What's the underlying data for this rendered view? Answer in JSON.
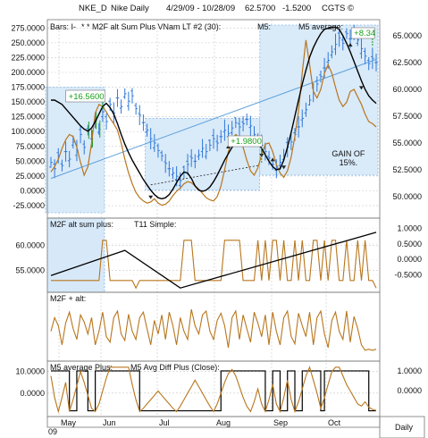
{
  "header": {
    "symbol": "NKE_D",
    "title": "Nike Daily",
    "date_range": "4/29/09 - 10/28/09",
    "last_price": "62.5700",
    "change": "-1.5200",
    "copyright": "CGTS ©"
  },
  "chart_data": [
    {
      "type": "line",
      "panel": "price",
      "legend": [
        "Bars: I-",
        "* * M2F alt Sum Plus VNam LT #2 (30):",
        "M5:",
        "M5 average:"
      ],
      "left_axis_ticks": [
        "275.0000",
        "250.0000",
        "225.0000",
        "200.0000",
        "175.0000",
        "150.0000",
        "125.0000",
        "100.0000",
        "75.0000",
        "50.0000",
        "25.0000",
        "0.0000",
        "-25.0000"
      ],
      "right_axis_ticks": [
        "65.0000",
        "62.5000",
        "60.0000",
        "57.5000",
        "55.0000",
        "52.5000",
        "50.0000"
      ],
      "right_ylim": [
        48.5,
        66.0
      ],
      "left_ylim": [
        -37,
        280
      ],
      "x_labels": [
        "May",
        "Jun",
        "Jul",
        "Aug",
        "Sep",
        "Oct"
      ],
      "year_label": "09",
      "corner_label": "Daily",
      "annotations": [
        "+16.5600",
        "+1.9800",
        "+8.34",
        "GAIN OF",
        "15%."
      ],
      "price_close": [
        53.2,
        52.6,
        53.8,
        52.9,
        54.2,
        53.5,
        55.1,
        54.3,
        55.8,
        54.6,
        56.2,
        55.4,
        57.1,
        56.3,
        57.9,
        57.0,
        58.6,
        57.8,
        59.2,
        58.4,
        59.6,
        58.9,
        59.4,
        58.2,
        57.6,
        56.9,
        56.2,
        55.4,
        55.0,
        54.3,
        53.8,
        53.1,
        52.6,
        52.2,
        51.9,
        51.5,
        52.3,
        53.0,
        53.6,
        53.3,
        53.9,
        54.5,
        54.2,
        54.8,
        55.4,
        55.0,
        55.6,
        56.2,
        55.9,
        56.4,
        56.9,
        56.5,
        56.8,
        57.2,
        56.6,
        55.8,
        55.3,
        54.8,
        54.2,
        53.6,
        53.0,
        52.6,
        53.2,
        53.9,
        54.6,
        55.1,
        55.8,
        56.5,
        57.3,
        58.1,
        59.0,
        59.7,
        60.5,
        61.2,
        62.0,
        62.7,
        63.5,
        64.2,
        64.8,
        64.3,
        65.2,
        64.7,
        65.3,
        64.6,
        63.8,
        63.1,
        62.4,
        62.9,
        62.5
      ],
      "black_line_right": [
        59.0,
        59.0,
        58.8,
        58.6,
        58.2,
        57.8,
        57.4,
        57.0,
        56.6,
        56.3,
        56.1,
        56.4,
        57.0,
        57.7,
        58.4,
        58.7,
        58.3,
        57.7,
        56.8,
        55.8,
        54.9,
        54.1,
        53.4,
        52.8,
        52.2,
        51.6,
        51.1,
        50.6,
        50.2,
        49.9,
        49.8,
        49.9,
        50.2,
        50.7,
        51.3,
        51.9,
        52.3,
        52.2,
        51.7,
        51.0,
        50.6,
        50.5,
        50.6,
        50.9,
        51.4,
        52.0,
        52.7,
        53.4,
        54.0,
        54.6,
        55.0,
        55.3,
        55.4,
        55.5,
        55.6,
        55.4,
        55.0,
        54.5,
        53.9,
        53.3,
        52.8,
        52.5,
        52.6,
        53.4,
        54.6,
        56.0,
        57.5,
        59.0,
        60.5,
        61.8,
        63.0,
        63.9,
        64.6,
        65.2,
        65.6,
        65.7,
        65.8,
        65.8,
        65.6,
        65.0,
        64.3,
        63.5,
        62.6,
        61.7,
        60.8,
        60.0,
        59.4,
        59.0,
        58.7
      ],
      "orange_line_right": [
        52.3,
        52.8,
        53.5,
        54.5,
        55.3,
        55.8,
        55.6,
        54.6,
        53.2,
        52.0,
        52.8,
        55.0,
        57.8,
        58.6,
        58.4,
        57.9,
        57.3,
        56.8,
        56.2,
        55.0,
        53.5,
        52.2,
        51.2,
        50.4,
        49.9,
        49.6,
        49.4,
        49.5,
        49.8,
        49.4,
        49.2,
        49.3,
        49.6,
        50.1,
        50.5,
        50.8,
        51.2,
        51.4,
        51.3,
        51.0,
        50.7,
        50.3,
        49.9,
        49.7,
        49.6,
        50.0,
        51.0,
        52.5,
        54.2,
        55.3,
        55.8,
        55.5,
        54.6,
        53.4,
        52.4,
        52.0,
        52.7,
        53.9,
        54.9,
        55.0,
        54.2,
        53.0,
        52.2,
        51.8,
        52.4,
        53.7,
        55.6,
        58.0,
        61.6,
        64.6,
        62.3,
        59.8,
        59.2,
        60.0,
        61.5,
        62.3,
        61.5,
        60.2,
        59.0,
        58.4,
        58.8,
        59.8,
        60.0,
        59.3,
        58.6,
        57.7,
        57.0,
        56.8,
        56.5
      ],
      "regression_right": [
        [
          0,
          51.7
        ],
        [
          88,
          62.8
        ]
      ],
      "entry_markers": [
        "up",
        "down",
        "up",
        "down",
        "up",
        "down",
        "up",
        "down"
      ]
    },
    {
      "type": "line",
      "panel": "m2f_alt_sum_plus",
      "legend": [
        "M2F alt sum plus:",
        "T11 Simple:"
      ],
      "left_axis_ticks": [
        "60.0000",
        "55.0000"
      ],
      "right_axis_ticks": [
        "1.0000",
        "0.5000",
        "0.0000",
        "-0.5000"
      ],
      "left_ylim": [
        51.0,
        64.0
      ],
      "right_ylim": [
        -1.0,
        1.1
      ],
      "black_line_left": [
        [
          0,
          54.0
        ],
        [
          20,
          59.0
        ],
        [
          35,
          51.5
        ],
        [
          88,
          62.6
        ]
      ],
      "orange_line_left": [
        53,
        53,
        53,
        53,
        53,
        53,
        53,
        53,
        53,
        53,
        53,
        53,
        53,
        53,
        61,
        61,
        53,
        53,
        53,
        53,
        53,
        53,
        53,
        51.5,
        53,
        53,
        53,
        53,
        53,
        53,
        53,
        53,
        53,
        53,
        53,
        53,
        61,
        61,
        61,
        53,
        53,
        53,
        53,
        53,
        53,
        53,
        53,
        61,
        61,
        61,
        61,
        61,
        53,
        53,
        53,
        53,
        61,
        53,
        61,
        53,
        61,
        61,
        53,
        61,
        53,
        53,
        61,
        53,
        61,
        53,
        53,
        61,
        61,
        53,
        61,
        53,
        61,
        61,
        53,
        53,
        61,
        53,
        53,
        61,
        53,
        61,
        53,
        53,
        51.5
      ]
    },
    {
      "type": "line",
      "panel": "m2f_alt",
      "legend": [
        "M2F + alt:"
      ],
      "left_axis_ticks": [],
      "right_axis_ticks": [],
      "ylim": [
        0,
        1
      ],
      "orange_line": [
        0.45,
        0.7,
        0.55,
        0.2,
        0.6,
        0.8,
        0.5,
        0.3,
        0.75,
        0.62,
        0.4,
        0.7,
        0.2,
        0.45,
        0.8,
        0.35,
        0.25,
        0.7,
        0.82,
        0.4,
        0.28,
        0.76,
        0.45,
        0.3,
        0.7,
        0.8,
        0.5,
        0.2,
        0.65,
        0.4,
        0.75,
        0.3,
        0.8,
        0.55,
        0.2,
        0.7,
        0.45,
        0.3,
        0.85,
        0.55,
        0.4,
        0.75,
        0.82,
        0.45,
        0.3,
        0.65,
        0.78,
        0.55,
        0.15,
        0.7,
        0.82,
        0.3,
        0.75,
        0.5,
        0.25,
        0.8,
        0.6,
        0.35,
        0.75,
        0.2,
        0.8,
        0.45,
        0.2,
        0.7,
        0.82,
        0.35,
        0.22,
        0.78,
        0.55,
        0.35,
        0.8,
        0.2,
        0.7,
        0.82,
        0.4,
        0.15,
        0.65,
        0.8,
        0.45,
        0.3,
        0.82,
        0.25,
        0.72,
        0.5,
        0.2,
        0.1,
        0.12,
        0.1,
        0.12
      ]
    },
    {
      "type": "line",
      "panel": "m5_average_plus",
      "legend": [
        "M5 average Plus:",
        "M5 Avg Diff Plus (Close):"
      ],
      "left_axis_ticks": [
        "10.0000",
        "0.0000"
      ],
      "right_axis_ticks": [
        "1.0000",
        "0.0000"
      ],
      "left_ylim": [
        -10.0,
        14.0
      ],
      "right_ylim": [
        -1.2,
        1.4
      ],
      "black_step_right": [
        1,
        1,
        1,
        1,
        1,
        -1,
        -1,
        1,
        1,
        1,
        -1,
        -1,
        1,
        1,
        1,
        1,
        1,
        1,
        1,
        1,
        1,
        1,
        1,
        1,
        -1,
        -1,
        -1,
        -1,
        -1,
        -1,
        -1,
        -1,
        -1,
        -1,
        -1,
        -1,
        -1,
        -1,
        -1,
        -1,
        -1,
        -1,
        -1,
        -1,
        -1,
        -1,
        1,
        1,
        1,
        1,
        1,
        1,
        1,
        1,
        1,
        1,
        1,
        1,
        -1,
        -1,
        1,
        1,
        -1,
        -1,
        1,
        1,
        -1,
        -1,
        1,
        1,
        1,
        1,
        1,
        -1,
        1,
        1,
        1,
        1,
        1,
        1,
        1,
        1,
        1,
        1,
        1,
        1,
        -1,
        -1,
        -1
      ],
      "orange_line_left": [
        8.0,
        -2.0,
        -8.5,
        -2.0,
        5.0,
        -8.5,
        -3.0,
        3.5,
        10.0,
        5.0,
        -1.0,
        -7.0,
        -8.5,
        -5.0,
        1.0,
        7.0,
        12.0,
        12.0,
        12.0,
        12.0,
        12.0,
        12.0,
        4.0,
        -3.0,
        -8.5,
        -7.0,
        -5.0,
        -3.0,
        -1.0,
        1.0,
        -1.0,
        -3.0,
        -5.0,
        -7.0,
        -8.5,
        -6.0,
        -3.0,
        0.0,
        3.0,
        6.0,
        3.0,
        0.0,
        -3.0,
        -6.0,
        -8.5,
        -5.0,
        0.0,
        5.0,
        9.0,
        11.0,
        8.0,
        3.0,
        -2.0,
        -6.0,
        -8.5,
        -4.0,
        2.0,
        -5.0,
        -8.5,
        -3.0,
        4.0,
        -5.0,
        -8.5,
        -2.0,
        6.0,
        -3.0,
        -8.5,
        -4.0,
        2.0,
        8.0,
        12.0,
        6.0,
        0.0,
        -7.0,
        -2.0,
        4.0,
        10.0,
        12.0,
        12.0,
        8.0,
        4.0,
        1.0,
        -2.0,
        -5.0,
        -6.0,
        -4.0,
        -6.5,
        -7.5,
        -8.0
      ]
    }
  ],
  "colors": {
    "price_bar": "#2e78d8",
    "highlight_fill": "#d7e9f9",
    "highlight_stroke": "#7fb4e6",
    "oscillator": "#b8761d",
    "black_line": "#000000",
    "regression": "#5aa0dc",
    "annotation_green": "#18a018",
    "grid": "#c9c9c9"
  }
}
